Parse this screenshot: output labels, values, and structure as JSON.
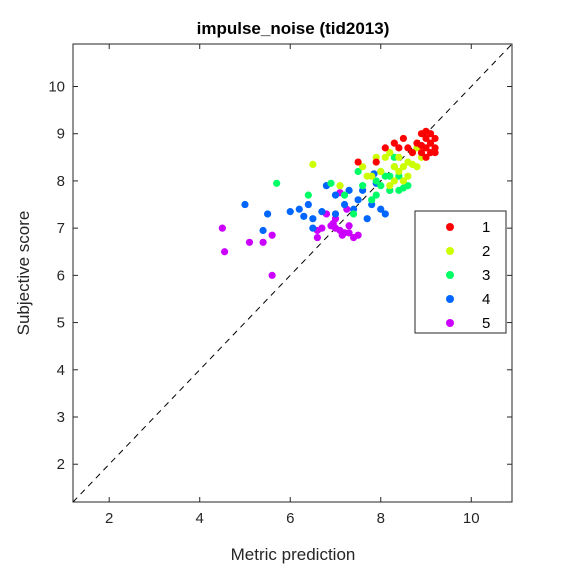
{
  "chart_data": {
    "type": "scatter",
    "title": "impulse_noise (tid2013)",
    "xlabel": "Metric prediction",
    "ylabel": "Subjective score",
    "xlim": [
      1.2,
      10.9
    ],
    "ylim": [
      1.2,
      10.9
    ],
    "xticks": [
      2,
      4,
      6,
      8,
      10
    ],
    "yticks": [
      2,
      3,
      4,
      5,
      6,
      7,
      8,
      9,
      10
    ],
    "grid": false,
    "legend_position": "right",
    "reference_line": "y = x (dashed)",
    "series": [
      {
        "name": "1",
        "color": "#ff0000",
        "points": [
          [
            7.5,
            8.4
          ],
          [
            8.1,
            8.7
          ],
          [
            8.3,
            8.8
          ],
          [
            8.5,
            8.9
          ],
          [
            8.6,
            8.7
          ],
          [
            8.8,
            8.8
          ],
          [
            8.9,
            9.0
          ],
          [
            9.0,
            8.9
          ],
          [
            9.1,
            9.0
          ],
          [
            9.2,
            8.9
          ],
          [
            9.0,
            8.7
          ],
          [
            9.1,
            8.6
          ],
          [
            9.2,
            8.7
          ],
          [
            8.9,
            8.6
          ],
          [
            9.0,
            8.5
          ],
          [
            9.2,
            8.6
          ],
          [
            8.7,
            8.6
          ],
          [
            9.1,
            8.8
          ],
          [
            9.0,
            9.05
          ],
          [
            8.9,
            8.75
          ],
          [
            7.9,
            8.4
          ],
          [
            8.4,
            8.7
          ]
        ]
      },
      {
        "name": "2",
        "color": "#ccff00",
        "points": [
          [
            6.5,
            8.35
          ],
          [
            7.1,
            7.9
          ],
          [
            7.6,
            8.3
          ],
          [
            7.8,
            8.1
          ],
          [
            7.9,
            8.5
          ],
          [
            8.0,
            8.2
          ],
          [
            8.1,
            8.5
          ],
          [
            8.2,
            8.6
          ],
          [
            8.3,
            8.3
          ],
          [
            8.4,
            8.2
          ],
          [
            8.5,
            8.3
          ],
          [
            8.6,
            8.4
          ],
          [
            8.7,
            8.6
          ],
          [
            8.8,
            8.7
          ],
          [
            8.6,
            8.1
          ],
          [
            8.5,
            8.0
          ],
          [
            8.3,
            8.0
          ],
          [
            8.8,
            8.3
          ],
          [
            8.9,
            8.5
          ],
          [
            8.7,
            8.35
          ],
          [
            8.4,
            8.5
          ],
          [
            8.2,
            7.9
          ],
          [
            7.7,
            8.1
          ]
        ]
      },
      {
        "name": "3",
        "color": "#00ff66",
        "points": [
          [
            5.7,
            7.95
          ],
          [
            6.4,
            7.7
          ],
          [
            6.9,
            7.95
          ],
          [
            7.2,
            7.7
          ],
          [
            7.4,
            7.3
          ],
          [
            7.5,
            8.2
          ],
          [
            7.6,
            7.9
          ],
          [
            7.8,
            7.6
          ],
          [
            7.9,
            8.0
          ],
          [
            8.0,
            8.2
          ],
          [
            8.1,
            8.1
          ],
          [
            8.2,
            7.8
          ],
          [
            8.3,
            8.3
          ],
          [
            8.4,
            7.8
          ],
          [
            8.5,
            7.85
          ],
          [
            8.6,
            7.9
          ],
          [
            8.2,
            8.1
          ],
          [
            8.0,
            7.9
          ],
          [
            8.4,
            8.1
          ],
          [
            8.3,
            8.5
          ],
          [
            7.9,
            7.7
          ]
        ]
      },
      {
        "name": "4",
        "color": "#0066ff",
        "points": [
          [
            5.0,
            7.5
          ],
          [
            5.4,
            6.95
          ],
          [
            5.5,
            7.3
          ],
          [
            6.0,
            7.35
          ],
          [
            6.2,
            7.4
          ],
          [
            6.4,
            7.5
          ],
          [
            6.5,
            7.2
          ],
          [
            6.7,
            7.35
          ],
          [
            6.8,
            7.9
          ],
          [
            7.0,
            7.7
          ],
          [
            7.2,
            7.5
          ],
          [
            7.3,
            7.8
          ],
          [
            7.5,
            7.6
          ],
          [
            7.6,
            7.8
          ],
          [
            7.8,
            7.5
          ],
          [
            7.9,
            7.95
          ],
          [
            8.0,
            7.4
          ],
          [
            8.1,
            7.3
          ],
          [
            7.7,
            7.2
          ],
          [
            6.5,
            7.0
          ],
          [
            7.4,
            7.4
          ],
          [
            8.2,
            7.8
          ],
          [
            7.85,
            8.15
          ],
          [
            6.3,
            7.25
          ],
          [
            7.0,
            7.3
          ]
        ]
      },
      {
        "name": "5",
        "color": "#cc00ff",
        "points": [
          [
            4.5,
            7.0
          ],
          [
            4.55,
            6.5
          ],
          [
            5.1,
            6.7
          ],
          [
            5.4,
            6.7
          ],
          [
            5.6,
            6.85
          ],
          [
            5.6,
            6.0
          ],
          [
            6.6,
            6.8
          ],
          [
            6.7,
            7.0
          ],
          [
            6.8,
            7.3
          ],
          [
            6.9,
            7.05
          ],
          [
            7.0,
            7.2
          ],
          [
            7.0,
            7.0
          ],
          [
            7.1,
            6.95
          ],
          [
            7.2,
            6.9
          ],
          [
            7.25,
            7.4
          ],
          [
            7.3,
            7.05
          ],
          [
            7.4,
            6.8
          ],
          [
            7.5,
            6.85
          ],
          [
            6.6,
            6.95
          ],
          [
            7.3,
            6.9
          ],
          [
            7.15,
            6.85
          ],
          [
            6.95,
            7.1
          ],
          [
            7.1,
            7.75
          ]
        ]
      }
    ]
  }
}
